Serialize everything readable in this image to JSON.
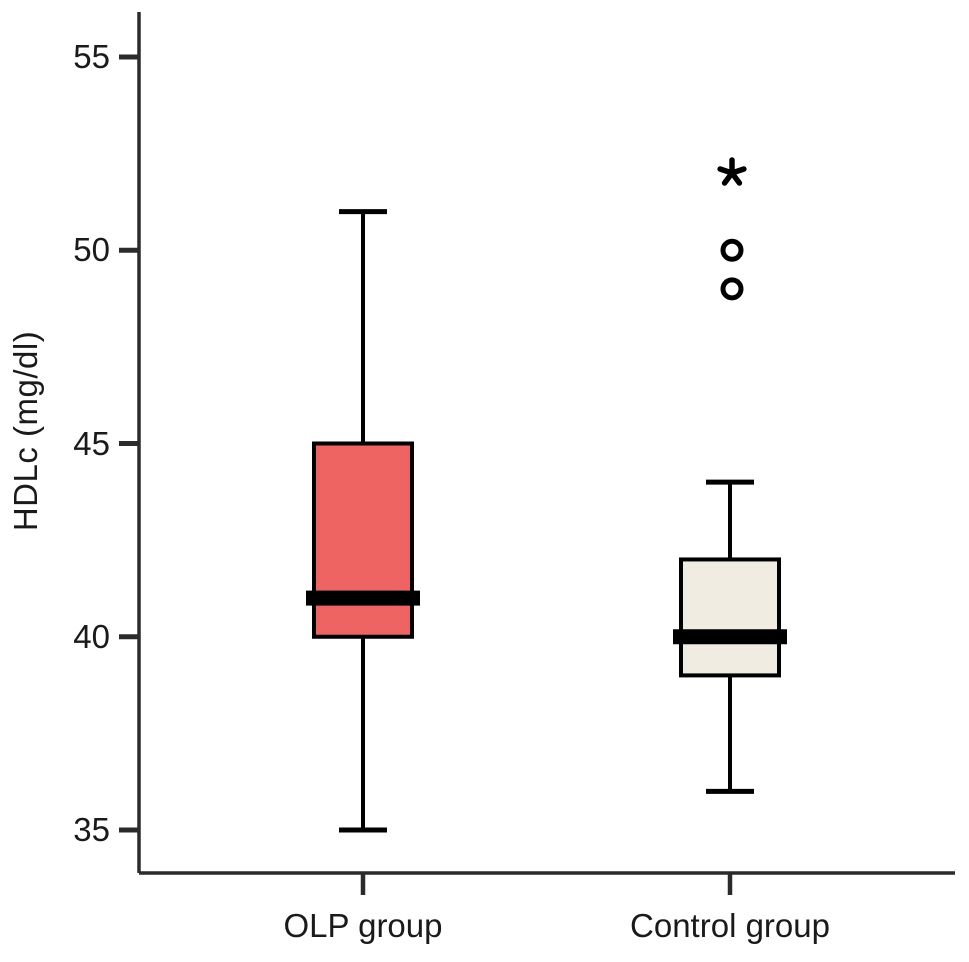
{
  "chart_data": {
    "type": "boxplot",
    "title": "",
    "xlabel": "",
    "ylabel": "HDLc (mg/dl)",
    "ylim": [
      33.8,
      56.2
    ],
    "yticks": [
      35,
      40,
      45,
      50,
      55
    ],
    "grid": false,
    "legend": "none",
    "categories": [
      "OLP group",
      "Control group"
    ],
    "series": [
      {
        "name": "OLP group",
        "whisker_low": 35,
        "q1": 40,
        "median": 41,
        "q3": 45,
        "whisker_high": 51,
        "outliers": [],
        "extreme_outliers": [],
        "box_fill": "#ee6462"
      },
      {
        "name": "Control group",
        "whisker_low": 36,
        "q1": 39,
        "median": 40,
        "q3": 42,
        "whisker_high": 44,
        "outliers": [
          50,
          49
        ],
        "extreme_outliers": [
          52
        ],
        "box_fill": "#f1ece1"
      }
    ],
    "markers": {
      "outlier": "open-circle",
      "extreme_outlier": "asterisk"
    },
    "colors": {
      "box_stroke": "#000000",
      "median": "#000000",
      "axis": "#2b2b2b",
      "background": "#ffffff"
    }
  }
}
